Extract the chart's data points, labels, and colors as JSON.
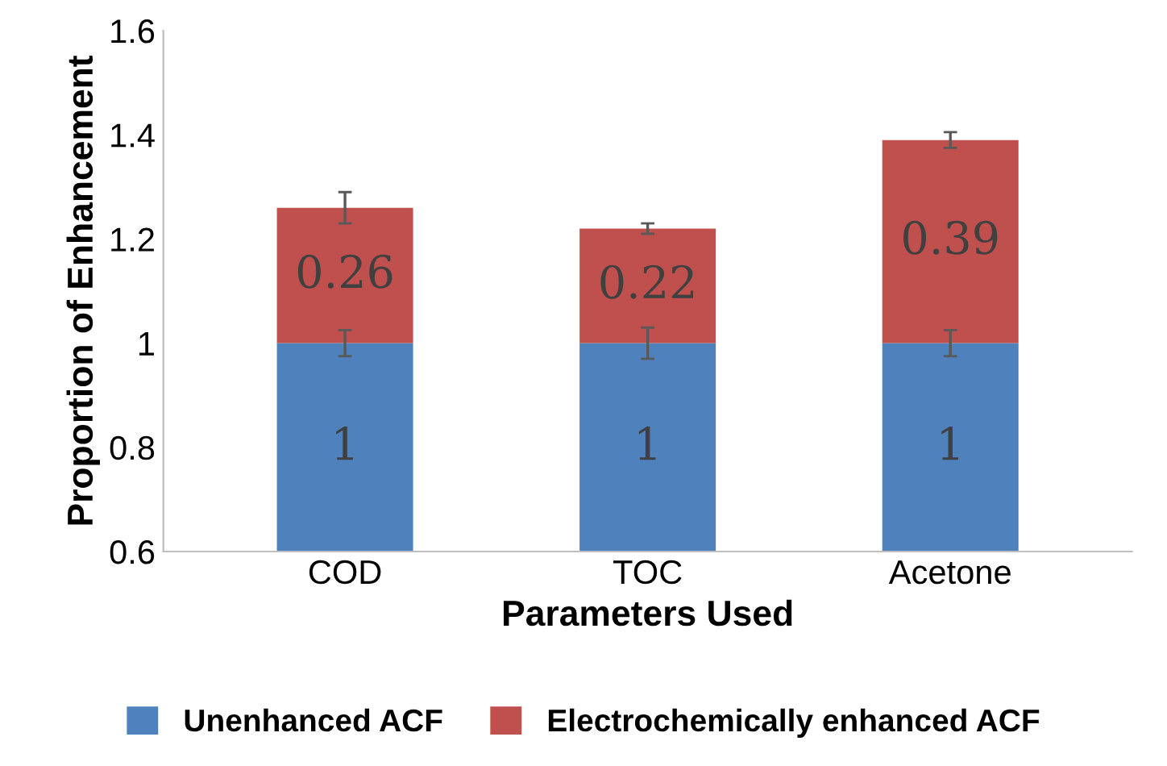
{
  "chart_data": {
    "type": "bar",
    "stacked": true,
    "xlabel": "Parameters Used",
    "ylabel": "Proportion of Enhancement",
    "categories": [
      "COD",
      "TOC",
      "Acetone"
    ],
    "series": [
      {
        "name": "Unenhanced ACF",
        "color": "#4f81bd",
        "values": [
          1,
          1,
          1
        ],
        "errors": [
          0.025,
          0.03,
          0.025
        ]
      },
      {
        "name": "Electrochemically enhanced ACF",
        "color": "#c0504d",
        "values": [
          0.26,
          0.22,
          0.39
        ],
        "base": [
          1,
          1,
          1
        ],
        "errors": [
          0.03,
          0.01,
          0.015
        ]
      }
    ],
    "ylim": [
      0.6,
      1.6
    ],
    "yticks": [
      0.6,
      0.8,
      1,
      1.2,
      1.4,
      1.6
    ],
    "data_labels": true,
    "grid": false,
    "legend": "bottom"
  }
}
